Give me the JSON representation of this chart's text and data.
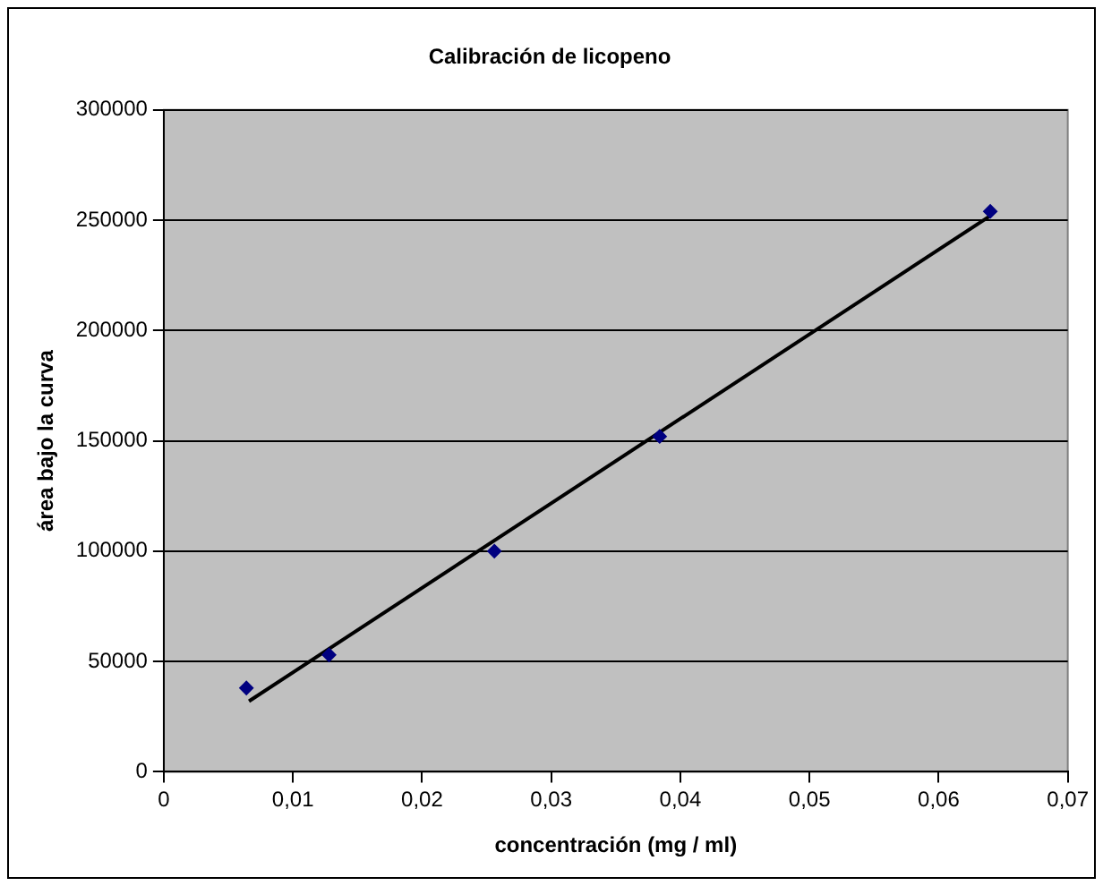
{
  "chart_data": {
    "type": "scatter",
    "title": "Calibración de licopeno",
    "xlabel": "concentración (mg / ml)",
    "ylabel": "área bajo la curva",
    "xlim": [
      0,
      0.07
    ],
    "xticks": [
      {
        "value": 0,
        "label": "0"
      },
      {
        "value": 0.01,
        "label": "0,01"
      },
      {
        "value": 0.02,
        "label": "0,02"
      },
      {
        "value": 0.03,
        "label": "0,03"
      },
      {
        "value": 0.04,
        "label": "0,04"
      },
      {
        "value": 0.05,
        "label": "0,05"
      },
      {
        "value": 0.06,
        "label": "0,06"
      },
      {
        "value": 0.07,
        "label": "0,07"
      }
    ],
    "ylim": [
      0,
      300000
    ],
    "yticks": [
      0,
      50000,
      100000,
      150000,
      200000,
      250000,
      300000
    ],
    "grid": "y",
    "legend": false,
    "series": [
      {
        "marker": "diamond",
        "color": "#000080",
        "x": [
          0.0064,
          0.0128,
          0.0256,
          0.0384,
          0.064
        ],
        "values": [
          38000,
          53000,
          100000,
          152000,
          254000
        ]
      },
      {
        "type": "line",
        "marker": "none",
        "color": "#000000",
        "x": [
          0.0066,
          0.064
        ],
        "values": [
          32000,
          252000
        ]
      }
    ]
  }
}
